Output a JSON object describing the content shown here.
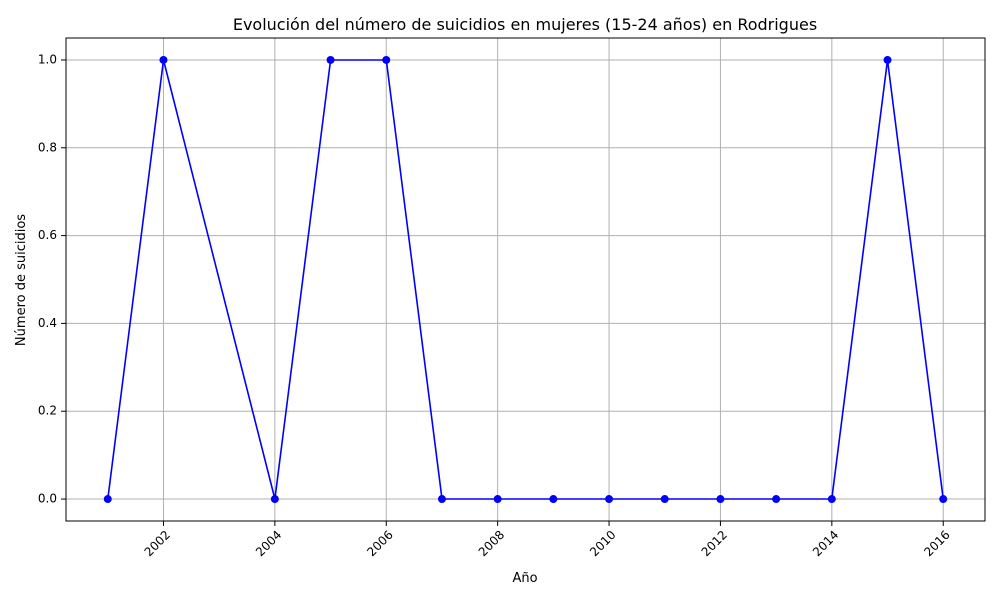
{
  "chart_data": {
    "type": "line",
    "title": "Evolución del número de suicidios en mujeres (15-24 años) en Rodrigues",
    "xlabel": "Año",
    "ylabel": "Número de suicidios",
    "x": [
      2001,
      2002,
      2004,
      2005,
      2006,
      2007,
      2008,
      2009,
      2010,
      2011,
      2012,
      2013,
      2014,
      2015,
      2016
    ],
    "y": [
      0,
      1,
      0,
      1,
      1,
      0,
      0,
      0,
      0,
      0,
      0,
      0,
      0,
      1,
      0
    ],
    "xlim": [
      2000.25,
      2016.75
    ],
    "ylim": [
      -0.05,
      1.05
    ],
    "xticks": [
      2002,
      2004,
      2006,
      2008,
      2010,
      2012,
      2014,
      2016
    ],
    "xtick_labels": [
      "2002",
      "2004",
      "2006",
      "2008",
      "2010",
      "2012",
      "2014",
      "2016"
    ],
    "yticks": [
      0.0,
      0.2,
      0.4,
      0.6,
      0.8,
      1.0
    ],
    "ytick_labels": [
      "0.0",
      "0.2",
      "0.4",
      "0.6",
      "0.8",
      "1.0"
    ],
    "x_tick_rotation": 45,
    "grid": true,
    "line_color": "#0000ff",
    "marker": "circle",
    "grid_color": "#b0b0b0"
  }
}
